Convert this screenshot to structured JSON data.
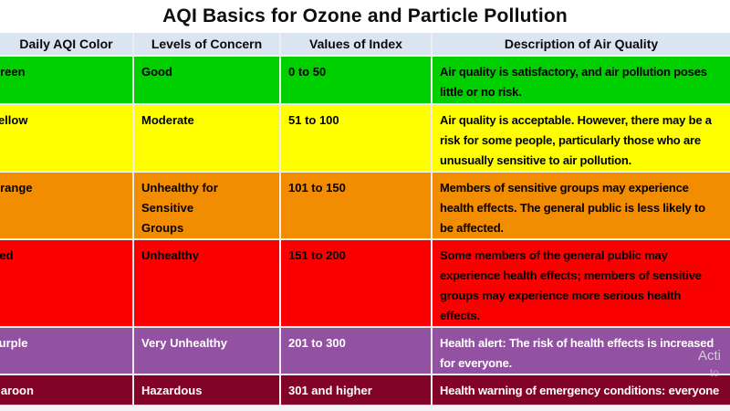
{
  "title": "AQI Basics for Ozone and Particle Pollution",
  "table": {
    "headers": [
      "Daily AQI Color",
      "Levels of Concern",
      "Values of Index",
      "Description of Air Quality"
    ],
    "rows": [
      {
        "color_name": "Green",
        "row_bg": "#00CF00",
        "text_color": "#000000",
        "level": "Good",
        "values": "0 to 50",
        "description": "Air quality is satisfactory, and air pollution poses\nlittle or no risk."
      },
      {
        "color_name": "Yellow",
        "row_bg": "#FFFF00",
        "text_color": "#000000",
        "level": "Moderate",
        "values": "51 to 100",
        "description": "Air quality is acceptable. However, there may be a\nrisk for some people, particularly those who are\nunusually sensitive to air pollution."
      },
      {
        "color_name": "Orange",
        "row_bg": "#F28C00",
        "text_color": "#000000",
        "level": "Unhealthy for Sensitive\nGroups",
        "values": "101 to 150",
        "description": "Members of sensitive groups may experience\nhealth effects. The general public is less likely to\nbe affected."
      },
      {
        "color_name": "Red",
        "row_bg": "#FA0000",
        "text_color": "#000000",
        "level": "Unhealthy",
        "values": "151 to 200",
        "description": "Some members of the general public may\nexperience health effects; members of sensitive\ngroups may experience more serious health\neffects."
      },
      {
        "color_name": "Purple",
        "row_bg": "#9252A1",
        "text_color": "#FFFFFF",
        "level": "Very Unhealthy",
        "values": "201 to 300",
        "description": "Health alert: The risk of health effects is increased\nfor everyone."
      },
      {
        "color_name": "Maroon",
        "row_bg": "#810327",
        "text_color": "#FFFFFF",
        "level": "Hazardous",
        "values": "301 and higher",
        "description": "Health warning of emergency conditions: everyone\nis more likely to be affected."
      }
    ]
  },
  "watermark": {
    "line1": "Acti",
    "line2": "to"
  },
  "colors": {
    "header_bg": "#DBE5F1",
    "page_bg": "#FFFFFF",
    "bottom_strip": "#F4F4F6",
    "divider": "#EFEDF0"
  }
}
